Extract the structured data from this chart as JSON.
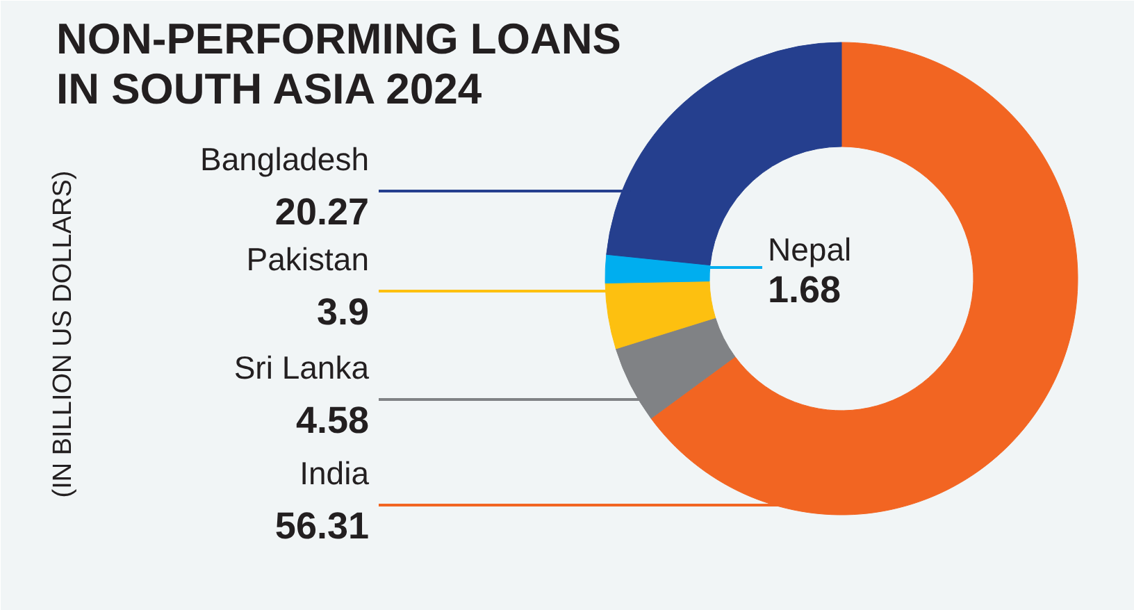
{
  "chart_data": {
    "type": "donut",
    "title": "NON-PERFORMING LOANS IN SOUTH ASIA 2024",
    "ylabel": "(IN BILLION US DOLLARS)",
    "categories": [
      "India",
      "Sri Lanka",
      "Pakistan",
      "Nepal",
      "Bangladesh"
    ],
    "values": [
      56.31,
      4.58,
      3.9,
      1.68,
      20.27
    ],
    "colors": [
      "#f26522",
      "#808285",
      "#fdc010",
      "#00aeef",
      "#253f8e"
    ],
    "data_labels": true
  }
}
